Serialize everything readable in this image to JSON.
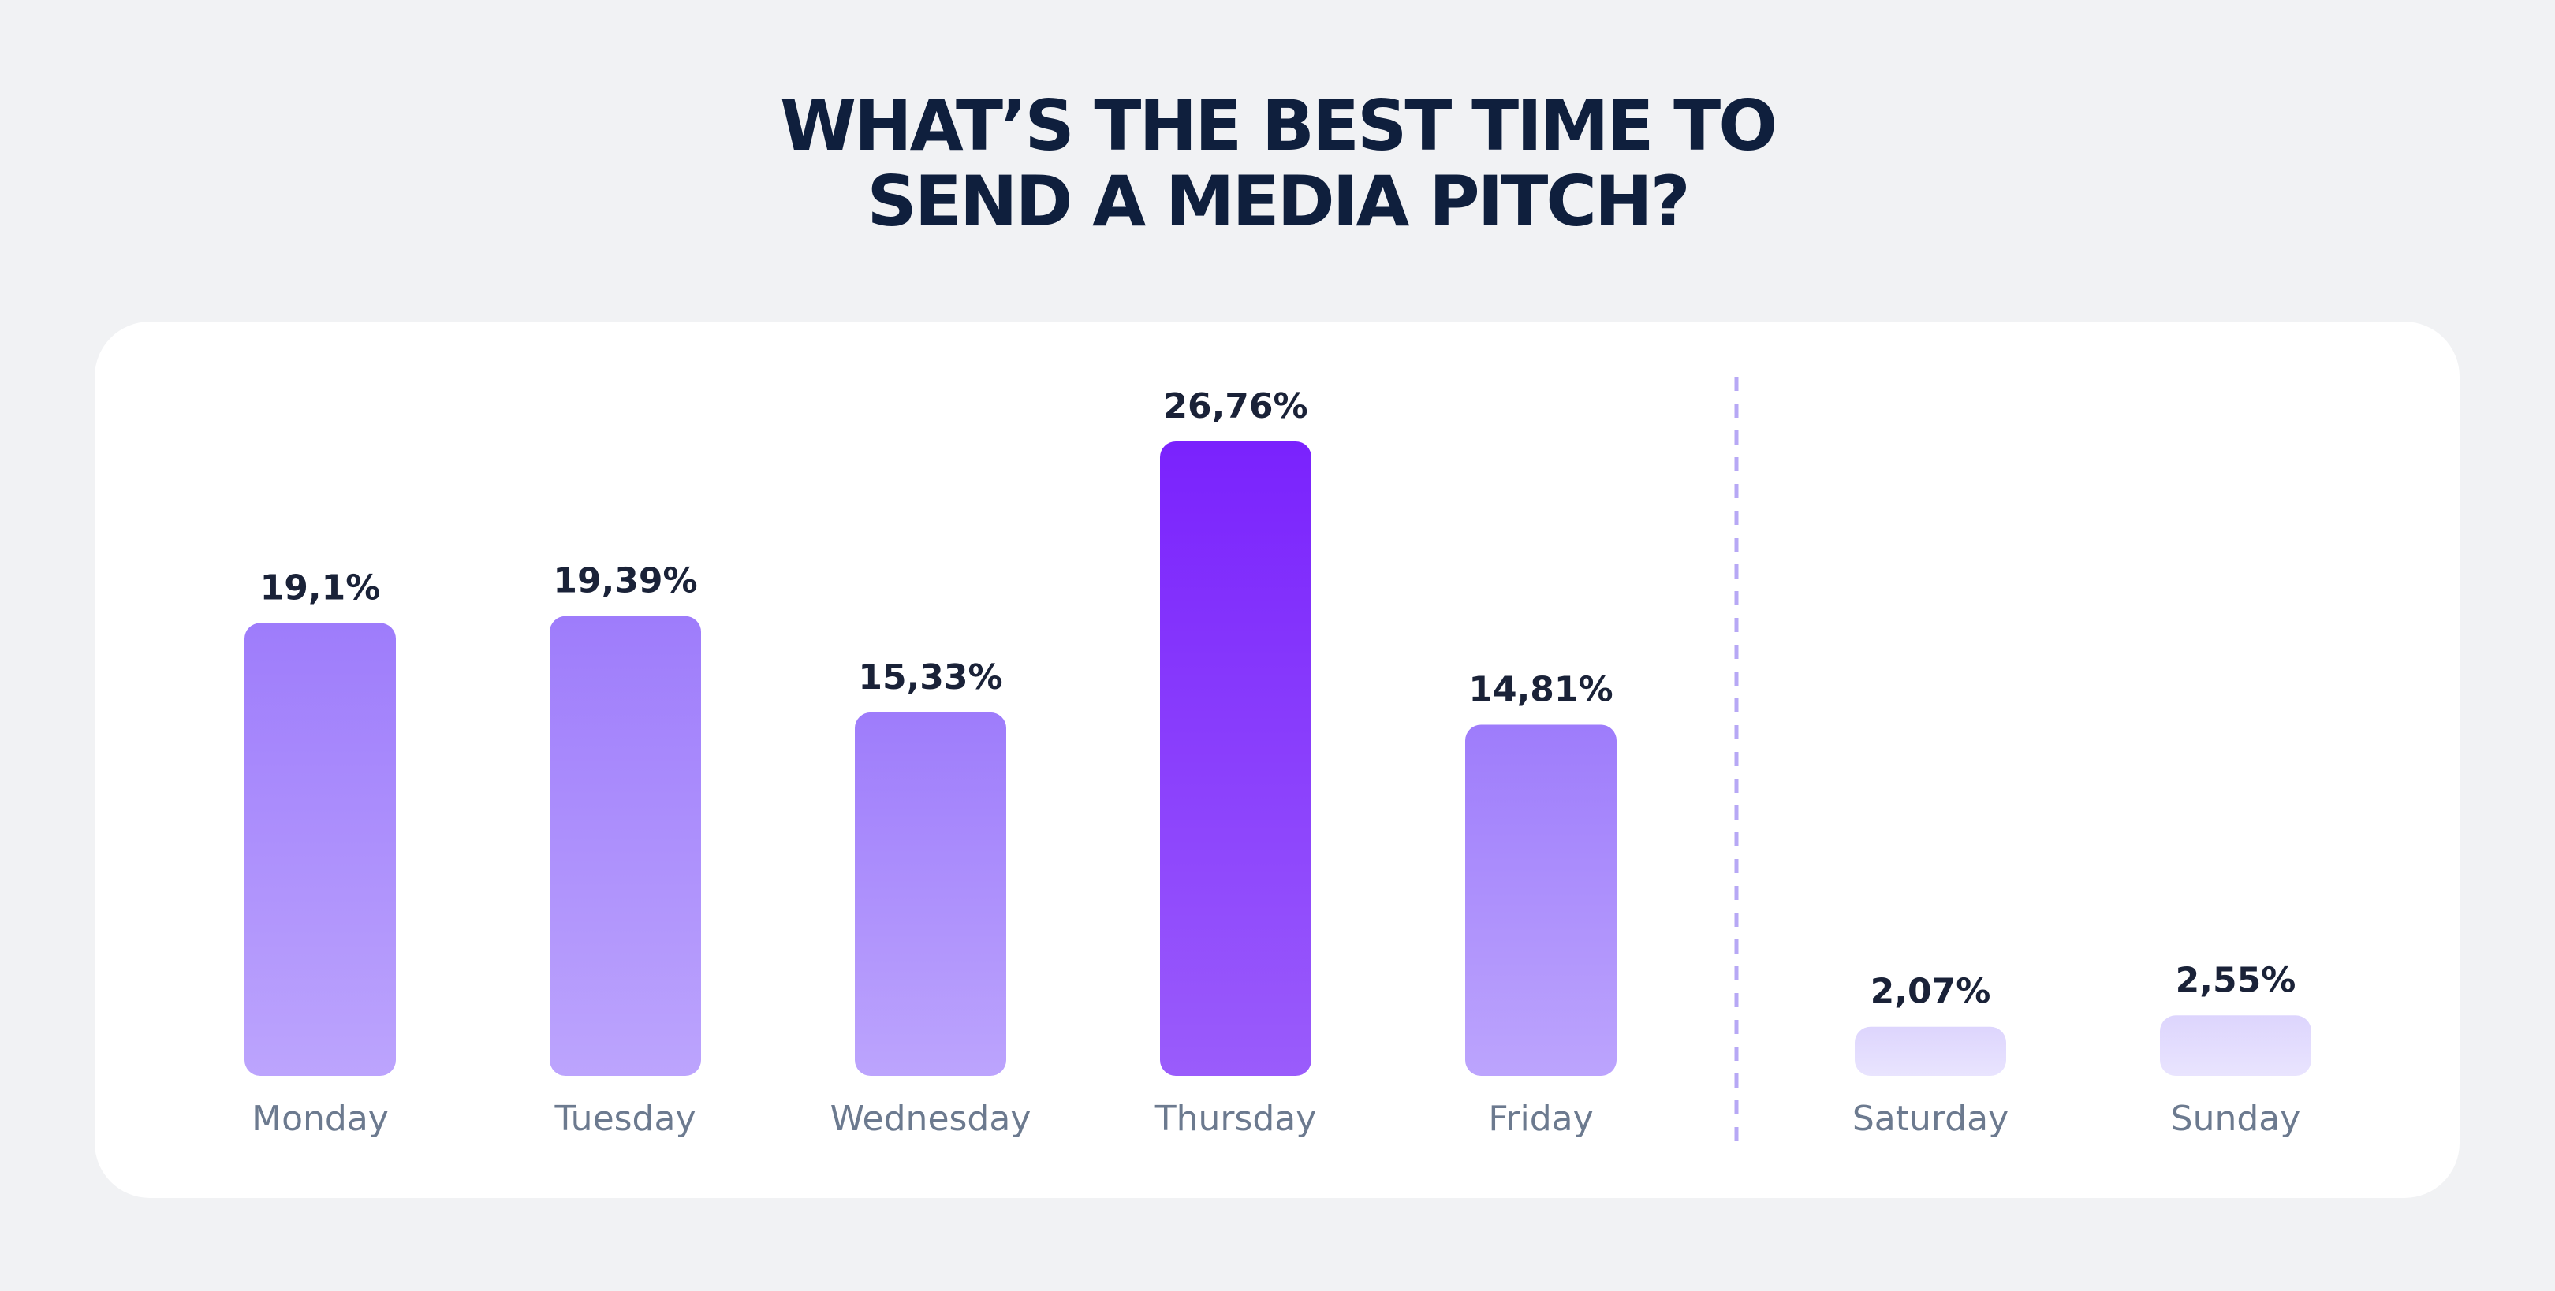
{
  "title_lines": [
    "WHAT’S THE BEST TIME TO",
    "SEND A MEDIA PITCH?"
  ],
  "chart_data": {
    "type": "bar",
    "title": "WHAT’S THE BEST TIME TO SEND A MEDIA PITCH?",
    "categories": [
      "Monday",
      "Tuesday",
      "Wednesday",
      "Thursday",
      "Friday",
      "Saturday",
      "Sunday"
    ],
    "values": [
      19.1,
      19.39,
      15.33,
      26.76,
      14.81,
      2.07,
      2.55
    ],
    "value_labels": [
      "19,1%",
      "19,39%",
      "15,33%",
      "26,76%",
      "14,81%",
      "2,07%",
      "2,55%"
    ],
    "unit": "%",
    "groups": {
      "weekdays": [
        "Monday",
        "Tuesday",
        "Wednesday",
        "Thursday",
        "Friday"
      ],
      "weekend": [
        "Saturday",
        "Sunday"
      ]
    },
    "highlight": "Thursday",
    "ylim": [
      0,
      26.76
    ],
    "grid": false,
    "colors": {
      "highlight_top": "#7a22fd",
      "highlight_bottom": "#9a5cfb",
      "weekday_top": "#9e7cfb",
      "weekday_bottom": "#bca4fd",
      "weekend_top": "#ddd5fd",
      "weekend_bottom": "#e9e4fe",
      "divider": "#b7a8f5"
    }
  }
}
